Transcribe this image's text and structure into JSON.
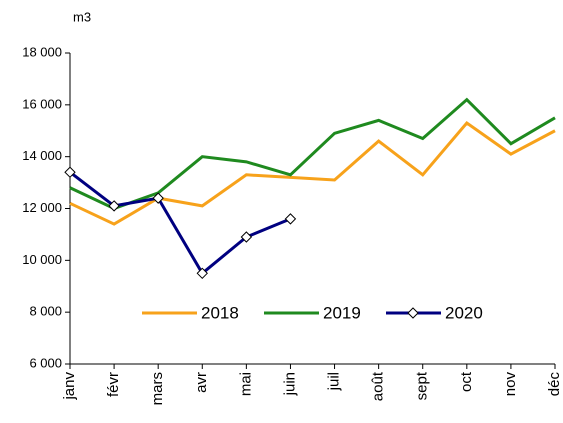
{
  "chart_data": {
    "type": "line",
    "y_label": "m3",
    "categories": [
      "janv",
      "févr",
      "mars",
      "avr",
      "mai",
      "juin",
      "juil",
      "août",
      "sept",
      "oct",
      "nov",
      "déc"
    ],
    "series": [
      {
        "name": "2018",
        "color": "#f7a21b",
        "values": [
          12200,
          11400,
          12400,
          12100,
          13300,
          13200,
          13100,
          14600,
          13300,
          15300,
          14100,
          15000
        ]
      },
      {
        "name": "2019",
        "color": "#1f8a1f",
        "values": [
          12800,
          12000,
          12600,
          14000,
          13800,
          13300,
          14900,
          15400,
          14700,
          16200,
          14500,
          15500
        ]
      },
      {
        "name": "2020",
        "color": "#000080",
        "marker": "diamond",
        "values": [
          13400,
          12100,
          12400,
          9500,
          10900,
          11600,
          null,
          null,
          null,
          null,
          null,
          null
        ]
      }
    ],
    "ylim": [
      6000,
      18000
    ],
    "yticks": [
      {
        "value": 6000,
        "label": "6 000"
      },
      {
        "value": 8000,
        "label": "8 000"
      },
      {
        "value": 10000,
        "label": "10 000"
      },
      {
        "value": 12000,
        "label": "12 000"
      },
      {
        "value": 14000,
        "label": "14 000"
      },
      {
        "value": 16000,
        "label": "16 000"
      },
      {
        "value": 18000,
        "label": "18 000"
      }
    ],
    "grid": false,
    "legend": "lower center"
  }
}
